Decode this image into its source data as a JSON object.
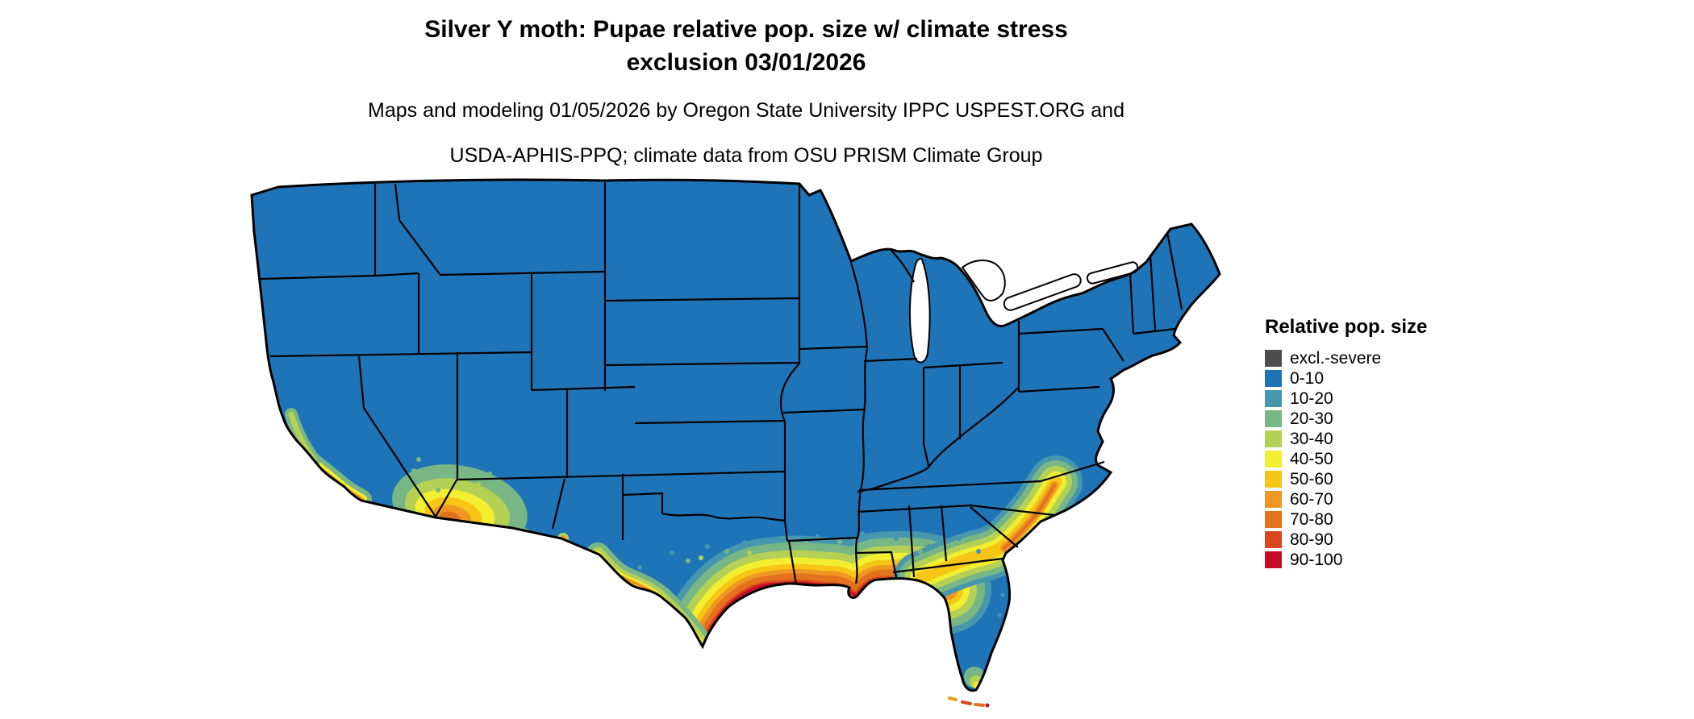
{
  "header": {
    "title_line1": "Silver Y moth: Pupae relative pop. size w/ climate stress",
    "title_line2": "exclusion 03/01/2026",
    "subtitle_line1": "Maps and modeling 01/05/2026 by Oregon State University IPPC USPEST.ORG and",
    "subtitle_line2": "USDA-APHIS-PPQ; climate data from OSU PRISM Climate Group"
  },
  "legend": {
    "title": "Relative pop. size",
    "items": [
      {
        "label": "excl.-severe",
        "color": "#4d4d4d"
      },
      {
        "label": "0-10",
        "color": "#1f74b8"
      },
      {
        "label": "10-20",
        "color": "#4697ae"
      },
      {
        "label": "20-30",
        "color": "#78b685"
      },
      {
        "label": "30-40",
        "color": "#b5d155"
      },
      {
        "label": "40-50",
        "color": "#f2ee30"
      },
      {
        "label": "50-60",
        "color": "#f6c515"
      },
      {
        "label": "60-70",
        "color": "#ef9722"
      },
      {
        "label": "70-80",
        "color": "#e4711c"
      },
      {
        "label": "80-90",
        "color": "#d9471e"
      },
      {
        "label": "90-100",
        "color": "#c50d28"
      }
    ]
  },
  "map": {
    "type": "choropleth",
    "region": "Continental United States with state boundaries",
    "base_value": "0-10",
    "high_value_areas": "Gulf coast of Texas/Louisiana/Mississippi/Alabama, south Texas, southern Georgia and Carolina coast, southern Arizona and southeast California, southern Florida tip and keys"
  }
}
